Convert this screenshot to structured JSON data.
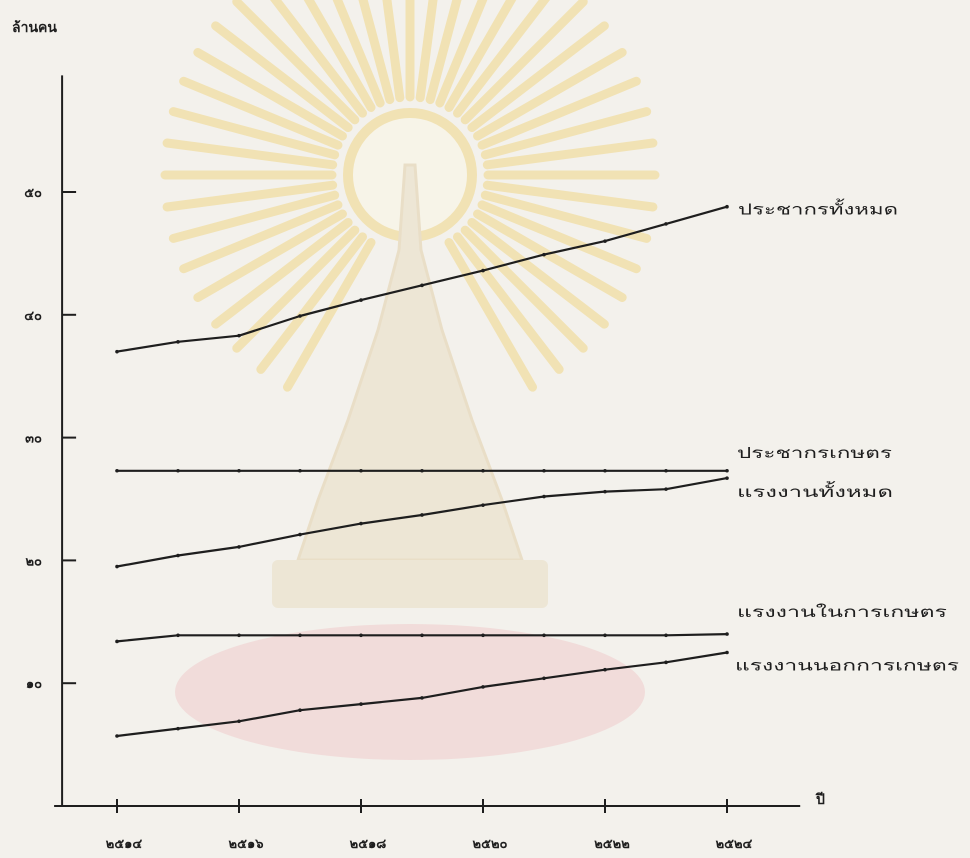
{
  "chart_data": {
    "type": "line",
    "ylabel": "ล้านคน",
    "xlabel": "ปี",
    "x": [
      2514,
      2515,
      2516,
      2517,
      2518,
      2519,
      2520,
      2521,
      2522,
      2523,
      2524
    ],
    "xticks": [
      2514,
      2516,
      2518,
      2520,
      2522,
      2524
    ],
    "xtick_labels": [
      "๒๕๑๔",
      "๒๕๑๖",
      "๒๕๑๘",
      "๒๕๒๐",
      "๒๕๒๒",
      "๒๕๒๔"
    ],
    "yticks": [
      10,
      20,
      30,
      40,
      50
    ],
    "ytick_labels": [
      "๑๐",
      "๒๐",
      "๓๐",
      "๔๐",
      "๕๐"
    ],
    "xlim": [
      2513.1,
      2525.2
    ],
    "ylim": [
      0,
      59.5
    ],
    "grid": false,
    "legend_placement": "line-end-right",
    "series": [
      {
        "name": "ประชากรทั้งหมด",
        "values": [
          37.0,
          37.8,
          38.3,
          39.9,
          41.2,
          42.4,
          43.6,
          44.9,
          46.0,
          47.4,
          48.8
        ]
      },
      {
        "name": "ประชากรเกษตร",
        "values": [
          27.3,
          27.3,
          27.3,
          27.3,
          27.3,
          27.3,
          27.3,
          27.3,
          27.3,
          27.3,
          27.3
        ]
      },
      {
        "name": "แรงงานทั้งหมด",
        "values": [
          19.5,
          20.4,
          21.1,
          22.1,
          23.0,
          23.7,
          24.5,
          25.2,
          25.6,
          25.8,
          26.7
        ]
      },
      {
        "name": "แรงงานในการเกษตร",
        "values": [
          13.4,
          13.9,
          13.9,
          13.9,
          13.9,
          13.9,
          13.9,
          13.9,
          13.9,
          13.9,
          14.0
        ]
      },
      {
        "name": "แรงงานนอกการเกษตร",
        "values": [
          5.7,
          6.3,
          6.9,
          7.8,
          8.3,
          8.8,
          9.7,
          10.4,
          11.1,
          11.7,
          12.5
        ]
      }
    ]
  },
  "watermark": {
    "icon": "university-seal-watermark"
  },
  "colors": {
    "background": "#f3f1ec",
    "line": "#1e1e1e",
    "watermark_ray": "#f1d98f",
    "watermark_body": "#eadfc6",
    "watermark_base": "#f0cfcf"
  }
}
